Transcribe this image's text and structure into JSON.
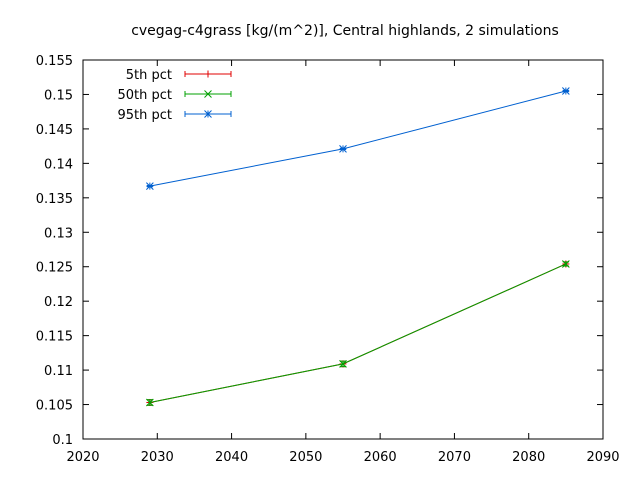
{
  "chart_data": {
    "type": "line",
    "title": "cvegag-c4grass [kg/(m^2)], Central highlands, 2 simulations",
    "xlabel": "",
    "ylabel": "",
    "xlim": [
      2020,
      2090
    ],
    "ylim": [
      0.1,
      0.155
    ],
    "x_ticks": [
      "2020",
      "2030",
      "2040",
      "2050",
      "2060",
      "2070",
      "2080",
      "2090"
    ],
    "y_ticks": [
      "0.1",
      "0.105",
      "0.11",
      "0.115",
      "0.12",
      "0.125",
      "0.13",
      "0.135",
      "0.14",
      "0.145",
      "0.15",
      "0.155"
    ],
    "grid": false,
    "legend_position": "top-left",
    "x": [
      2029,
      2055,
      2085
    ],
    "series": [
      {
        "name": "5th pct",
        "color": "#e00000",
        "marker": "plus",
        "values": [
          0.1053,
          0.1109,
          0.1254
        ],
        "error": [
          0.0004,
          0.0004,
          0.0003
        ]
      },
      {
        "name": "50th pct",
        "color": "#00a000",
        "marker": "cross",
        "values": [
          0.1053,
          0.1109,
          0.1254
        ],
        "error": [
          0.0004,
          0.0004,
          0.0003
        ]
      },
      {
        "name": "95th pct",
        "color": "#0060d0",
        "marker": "star",
        "values": [
          0.1367,
          0.1421,
          0.1505
        ],
        "error": [
          0.0001,
          0.0001,
          0.0001
        ]
      }
    ]
  }
}
